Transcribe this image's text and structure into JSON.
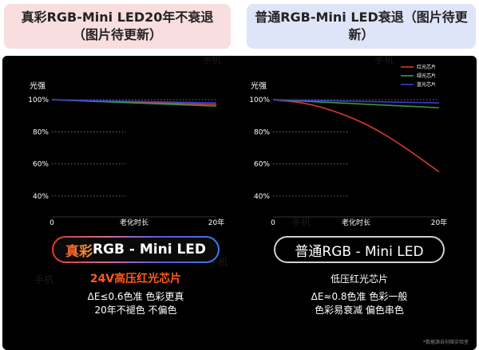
{
  "headers": {
    "left": "真彩RGB-Mini LED20年不衰退（图片待更新）",
    "right": "普通RGB-Mini LED衰退（图片待更新）"
  },
  "chart_data": [
    {
      "type": "line",
      "ylabel": "光强",
      "xlabel": "老化时长",
      "x_ticks": [
        "0",
        "20年"
      ],
      "y_ticks": [
        "100%",
        "80%",
        "60%",
        "40%"
      ],
      "xlim": [
        0,
        20
      ],
      "ylim": [
        30,
        105
      ],
      "grid": "dotted horizontal",
      "series": [
        {
          "color": "#d93a2a",
          "x": [
            0,
            20
          ],
          "y": [
            100,
            97
          ]
        },
        {
          "color": "#3a9a3a",
          "x": [
            0,
            20
          ],
          "y": [
            100,
            96
          ]
        },
        {
          "color": "#3a3ad9",
          "x": [
            0,
            20
          ],
          "y": [
            100,
            98
          ]
        }
      ]
    },
    {
      "type": "line",
      "ylabel": "光强",
      "xlabel": "老化时长",
      "x_ticks": [
        "0",
        "20年"
      ],
      "y_ticks": [
        "100%",
        "80%",
        "60%",
        "40%"
      ],
      "xlim": [
        0,
        20
      ],
      "ylim": [
        30,
        105
      ],
      "grid": "dotted horizontal",
      "legend_position": "top-right",
      "series": [
        {
          "name": "红光芯片",
          "color": "#d93a2a",
          "x": [
            0,
            4,
            8,
            12,
            16,
            20
          ],
          "y": [
            100,
            98,
            92,
            83,
            70,
            55
          ]
        },
        {
          "name": "绿光芯片",
          "color": "#3a9a3a",
          "x": [
            0,
            20
          ],
          "y": [
            100,
            95
          ]
        },
        {
          "name": "蓝光芯片",
          "color": "#3a3ad9",
          "x": [
            0,
            20
          ],
          "y": [
            100,
            98
          ]
        }
      ]
    }
  ],
  "left_label": {
    "prefix": "真彩",
    "rest": "RGB - Mini LED"
  },
  "right_label": "普通RGB - Mini LED",
  "left_desc": [
    "24V高压红光芯片",
    "ΔE≤0.6色准 色彩更真",
    "20年不褪色 不偏色"
  ],
  "right_desc": [
    "低压红光芯片",
    "ΔE≈0.8色准 色彩一般",
    "色彩易衰减 偏色串色"
  ],
  "watermark": "手机",
  "source_note": "*数据源自创维实验室"
}
